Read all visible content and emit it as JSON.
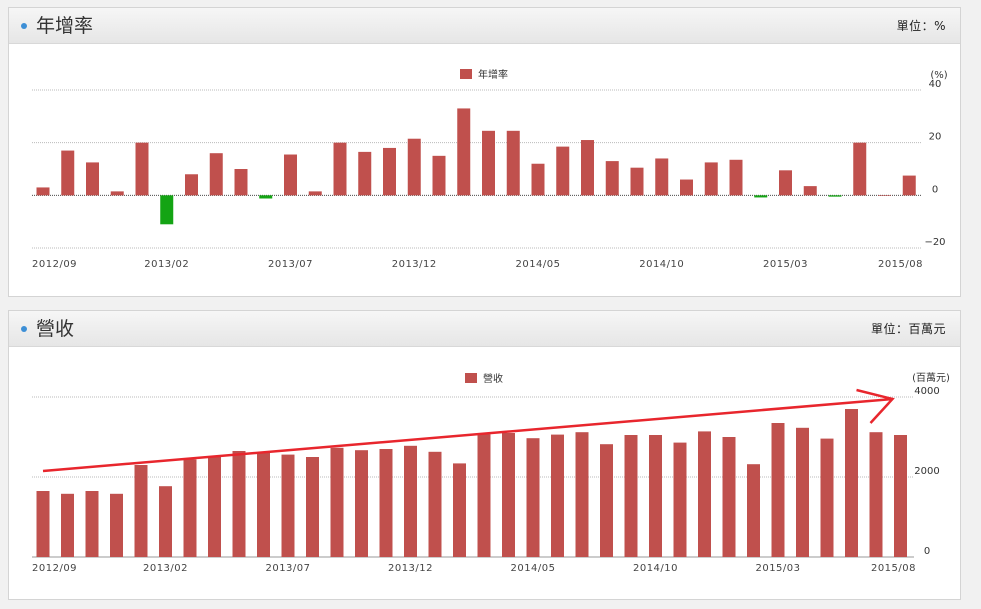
{
  "colors": {
    "bar": "#c0504d",
    "negative": "#14a414",
    "arrow": "#e8262d",
    "accent": "#3d8fd6"
  },
  "panels": [
    {
      "title": "年增率",
      "unit": "單位：%",
      "icon": "bullet-dot-icon"
    },
    {
      "title": "營收",
      "unit": "單位：百萬元",
      "icon": "bullet-dot-icon"
    }
  ],
  "chart_data": [
    {
      "type": "bar",
      "legend": "年增率",
      "legend_position": "top-center",
      "unit_label": "(%)",
      "ylim": [
        -20,
        40
      ],
      "yticks": [
        40,
        20,
        0,
        -20
      ],
      "grid": true,
      "x_tick_labels": [
        "2012/09",
        "2013/02",
        "2013/07",
        "2013/12",
        "2014/05",
        "2014/10",
        "2015/03",
        "2015/08"
      ],
      "categories": [
        "2012/09",
        "2012/10",
        "2012/11",
        "2012/12",
        "2013/01",
        "2013/02",
        "2013/03",
        "2013/04",
        "2013/05",
        "2013/06",
        "2013/07",
        "2013/08",
        "2013/09",
        "2013/10",
        "2013/11",
        "2013/12",
        "2014/01",
        "2014/02",
        "2014/03",
        "2014/04",
        "2014/05",
        "2014/06",
        "2014/07",
        "2014/08",
        "2014/09",
        "2014/10",
        "2014/11",
        "2014/12",
        "2015/01",
        "2015/02",
        "2015/03",
        "2015/04",
        "2015/05",
        "2015/06",
        "2015/07",
        "2015/08"
      ],
      "series": [
        {
          "name": "年增率",
          "values": [
            3,
            17,
            12.5,
            1.5,
            20,
            -11,
            8,
            16,
            10,
            -1.2,
            15.5,
            1.5,
            20,
            16.5,
            18,
            21.5,
            15,
            33,
            24.5,
            24.5,
            12,
            18.5,
            21,
            13,
            10.5,
            14,
            6,
            12.5,
            13.5,
            -0.8,
            9.5,
            3.5,
            -0.5,
            20,
            0,
            7.5
          ]
        }
      ]
    },
    {
      "type": "bar",
      "legend": "營收",
      "legend_position": "top-center",
      "unit_label": "(百萬元)",
      "ylim": [
        0,
        4000
      ],
      "yticks": [
        4000,
        2000,
        0
      ],
      "grid": true,
      "x_tick_labels": [
        "2012/09",
        "2013/02",
        "2013/07",
        "2013/12",
        "2014/05",
        "2014/10",
        "2015/03",
        "2015/08"
      ],
      "categories": [
        "2012/09",
        "2012/10",
        "2012/11",
        "2012/12",
        "2013/01",
        "2013/02",
        "2013/03",
        "2013/04",
        "2013/05",
        "2013/06",
        "2013/07",
        "2013/08",
        "2013/09",
        "2013/10",
        "2013/11",
        "2013/12",
        "2014/01",
        "2014/02",
        "2014/03",
        "2014/04",
        "2014/05",
        "2014/06",
        "2014/07",
        "2014/08",
        "2014/09",
        "2014/10",
        "2014/11",
        "2014/12",
        "2015/01",
        "2015/02",
        "2015/03",
        "2015/04",
        "2015/05",
        "2015/06",
        "2015/07",
        "2015/08"
      ],
      "series": [
        {
          "name": "營收",
          "values": [
            1650,
            1580,
            1650,
            1580,
            2300,
            1770,
            2440,
            2500,
            2650,
            2600,
            2560,
            2500,
            2730,
            2670,
            2700,
            2780,
            2630,
            2340,
            3070,
            3100,
            2970,
            3060,
            3120,
            2820,
            3050,
            3050,
            2860,
            3140,
            3000,
            2320,
            3350,
            3230,
            2960,
            3700,
            3120,
            3050
          ]
        }
      ],
      "annotation": {
        "type": "arrow",
        "from": [
          "2012/09",
          2150
        ],
        "to": [
          "2015/08",
          3950
        ],
        "color": "#e8262d"
      }
    }
  ]
}
